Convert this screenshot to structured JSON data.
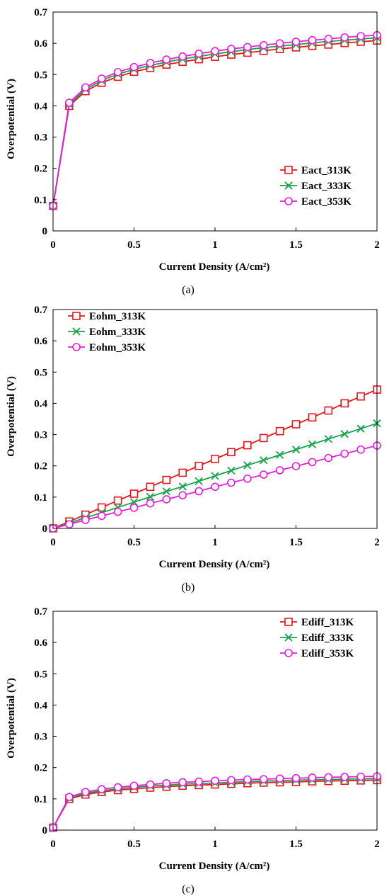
{
  "chart_data": [
    {
      "type": "line",
      "panel_label": "(a)",
      "xlabel": "Current Density (A/cm²)",
      "ylabel": "Overpotential (V)",
      "xlim": [
        0,
        2
      ],
      "ylim": [
        0,
        0.7
      ],
      "xticks": [
        "0",
        "0.5",
        "1",
        "1.5",
        "2"
      ],
      "yticks": [
        "0",
        "0.1",
        "0.2",
        "0.3",
        "0.4",
        "0.5",
        "0.6",
        "0.7"
      ],
      "grid": false,
      "legend_position": "bottom-right",
      "x": [
        0,
        0.1,
        0.2,
        0.3,
        0.4,
        0.5,
        0.6,
        0.7,
        0.8,
        0.9,
        1.0,
        1.1,
        1.2,
        1.3,
        1.4,
        1.5,
        1.6,
        1.7,
        1.8,
        1.9,
        2.0
      ],
      "series": [
        {
          "name": "Eact_313K",
          "marker": "square",
          "color": "#e8141c",
          "values": [
            0.08,
            0.4,
            0.447,
            0.474,
            0.493,
            0.509,
            0.521,
            0.532,
            0.541,
            0.549,
            0.557,
            0.564,
            0.57,
            0.576,
            0.582,
            0.587,
            0.592,
            0.596,
            0.601,
            0.605,
            0.609
          ]
        },
        {
          "name": "Eact_333K",
          "marker": "x",
          "color": "#17a34a",
          "values": [
            0.08,
            0.405,
            0.453,
            0.481,
            0.501,
            0.517,
            0.529,
            0.54,
            0.55,
            0.558,
            0.566,
            0.573,
            0.58,
            0.586,
            0.591,
            0.596,
            0.601,
            0.606,
            0.61,
            0.614,
            0.618
          ]
        },
        {
          "name": "Eact_353K",
          "marker": "circle",
          "color": "#e81ce0",
          "values": [
            0.08,
            0.41,
            0.459,
            0.487,
            0.508,
            0.524,
            0.537,
            0.548,
            0.558,
            0.567,
            0.575,
            0.582,
            0.588,
            0.594,
            0.6,
            0.605,
            0.61,
            0.614,
            0.619,
            0.623,
            0.626
          ]
        }
      ]
    },
    {
      "type": "line",
      "panel_label": "(b)",
      "xlabel": "Current Density (A/cm²)",
      "ylabel": "Overpotential (V)",
      "xlim": [
        0,
        2
      ],
      "ylim": [
        0,
        0.7
      ],
      "xticks": [
        "0",
        "0.5",
        "1",
        "1.5",
        "2"
      ],
      "yticks": [
        "0",
        "0.1",
        "0.2",
        "0.3",
        "0.4",
        "0.5",
        "0.6",
        "0.7"
      ],
      "grid": false,
      "legend_position": "top-left",
      "x": [
        0,
        0.1,
        0.2,
        0.3,
        0.4,
        0.5,
        0.6,
        0.7,
        0.8,
        0.9,
        1.0,
        1.1,
        1.2,
        1.3,
        1.4,
        1.5,
        1.6,
        1.7,
        1.8,
        1.9,
        2.0
      ],
      "series": [
        {
          "name": "Eohm_313K",
          "marker": "square",
          "color": "#e8141c",
          "values": [
            0,
            0.022,
            0.044,
            0.067,
            0.089,
            0.111,
            0.133,
            0.155,
            0.178,
            0.2,
            0.222,
            0.244,
            0.266,
            0.289,
            0.311,
            0.333,
            0.355,
            0.377,
            0.4,
            0.422,
            0.444
          ]
        },
        {
          "name": "Eohm_333K",
          "marker": "x",
          "color": "#17a34a",
          "values": [
            0,
            0.017,
            0.034,
            0.05,
            0.067,
            0.084,
            0.101,
            0.118,
            0.134,
            0.151,
            0.168,
            0.185,
            0.202,
            0.218,
            0.235,
            0.252,
            0.269,
            0.286,
            0.302,
            0.319,
            0.336
          ]
        },
        {
          "name": "Eohm_353K",
          "marker": "circle",
          "color": "#e81ce0",
          "values": [
            0,
            0.013,
            0.027,
            0.04,
            0.053,
            0.066,
            0.08,
            0.093,
            0.106,
            0.119,
            0.133,
            0.146,
            0.159,
            0.172,
            0.186,
            0.199,
            0.212,
            0.225,
            0.239,
            0.252,
            0.265
          ]
        }
      ]
    },
    {
      "type": "line",
      "panel_label": "(c)",
      "xlabel": "Current Density (A/cm²)",
      "ylabel": "Overpotential (V)",
      "xlim": [
        0,
        2
      ],
      "ylim": [
        0,
        0.7
      ],
      "xticks": [
        "0",
        "0.5",
        "1",
        "1.5",
        "2"
      ],
      "yticks": [
        "0",
        "0.1",
        "0.2",
        "0.3",
        "0.4",
        "0.5",
        "0.6",
        "0.7"
      ],
      "grid": false,
      "legend_position": "top-right",
      "x": [
        0,
        0.1,
        0.2,
        0.3,
        0.4,
        0.5,
        0.6,
        0.7,
        0.8,
        0.9,
        1.0,
        1.1,
        1.2,
        1.3,
        1.4,
        1.5,
        1.6,
        1.7,
        1.8,
        1.9,
        2.0
      ],
      "series": [
        {
          "name": "Ediff_313K",
          "marker": "square",
          "color": "#e8141c",
          "values": [
            0.008,
            0.1,
            0.114,
            0.122,
            0.128,
            0.132,
            0.136,
            0.139,
            0.142,
            0.144,
            0.146,
            0.148,
            0.15,
            0.152,
            0.153,
            0.154,
            0.156,
            0.157,
            0.158,
            0.159,
            0.16
          ]
        },
        {
          "name": "Ediff_333K",
          "marker": "x",
          "color": "#17a34a",
          "values": [
            0.008,
            0.103,
            0.118,
            0.126,
            0.132,
            0.137,
            0.141,
            0.144,
            0.147,
            0.149,
            0.151,
            0.153,
            0.155,
            0.157,
            0.158,
            0.16,
            0.161,
            0.162,
            0.163,
            0.164,
            0.165
          ]
        },
        {
          "name": "Ediff_353K",
          "marker": "circle",
          "color": "#e81ce0",
          "values": [
            0.008,
            0.106,
            0.122,
            0.131,
            0.137,
            0.142,
            0.146,
            0.15,
            0.153,
            0.155,
            0.158,
            0.16,
            0.162,
            0.163,
            0.165,
            0.166,
            0.168,
            0.169,
            0.17,
            0.171,
            0.172
          ]
        }
      ]
    }
  ]
}
